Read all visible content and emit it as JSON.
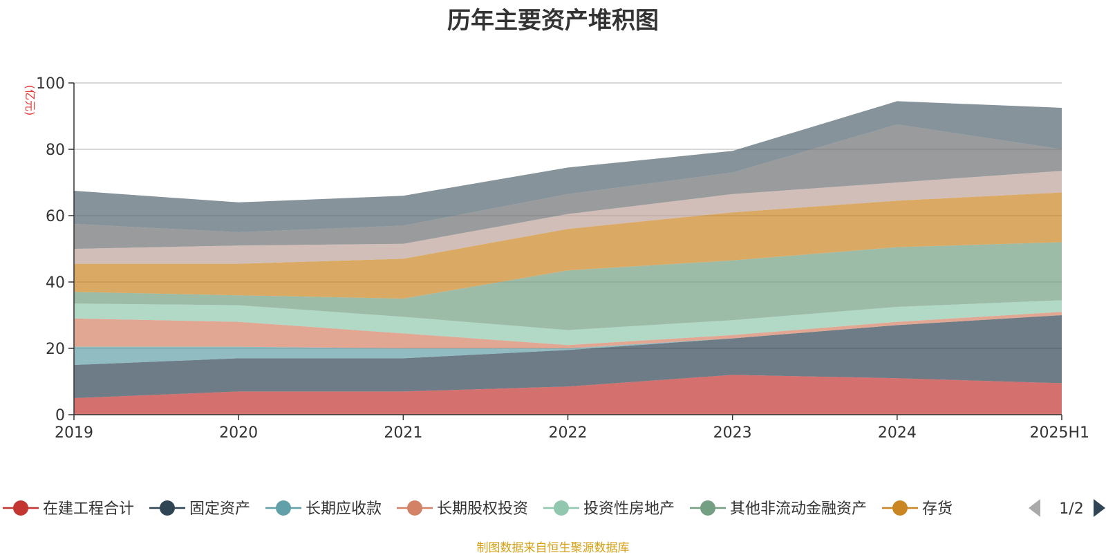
{
  "chart_data": {
    "type": "area",
    "stacked": true,
    "title": "历年主要资产堆积图",
    "ylabel": "(亿元)",
    "ylim": [
      0,
      100
    ],
    "yticks": [
      0,
      20,
      40,
      60,
      80,
      100
    ],
    "grid": true,
    "legend_position": "bottom",
    "categories": [
      "2019",
      "2020",
      "2021",
      "2022",
      "2023",
      "2024",
      "2025H1"
    ],
    "series": [
      {
        "name": "在建工程合计",
        "color": "#c23531",
        "values": [
          5,
          7,
          7,
          8.5,
          12,
          11,
          9.5
        ]
      },
      {
        "name": "固定资产",
        "color": "#2f4554",
        "values": [
          10,
          10,
          10,
          11,
          11,
          16,
          20.5
        ]
      },
      {
        "name": "长期应收款",
        "color": "#61a0a8",
        "values": [
          5.5,
          3.5,
          3,
          0.5,
          0,
          0,
          0
        ]
      },
      {
        "name": "长期股权投资",
        "color": "#d48265",
        "values": [
          8.5,
          7.5,
          4.5,
          1,
          1,
          1,
          1
        ]
      },
      {
        "name": "投资性房地产",
        "color": "#91c7ae",
        "values": [
          4.5,
          5,
          5,
          4.5,
          4.5,
          4.5,
          3.5
        ]
      },
      {
        "name": "其他非流动金融资产",
        "color": "#749f83",
        "values": [
          3.5,
          3,
          5.5,
          18,
          18,
          18,
          17.5
        ]
      },
      {
        "name": "存货",
        "color": "#ca8622",
        "values": [
          8.5,
          9.5,
          12,
          12.5,
          14.5,
          14,
          15
        ]
      },
      {
        "color": "#bda29a",
        "values": [
          4.5,
          5.5,
          4.5,
          4.5,
          5.5,
          5.5,
          6.5
        ]
      },
      {
        "color": "#6e7074",
        "values": [
          7.5,
          4,
          5.5,
          6,
          6.5,
          17.5,
          6.5
        ]
      },
      {
        "color": "#546570",
        "values": [
          10,
          9,
          9,
          8,
          6.5,
          7,
          12.5
        ]
      }
    ],
    "legend_pager": "1/2"
  },
  "source_text": "制图数据来自恒生聚源数据库"
}
